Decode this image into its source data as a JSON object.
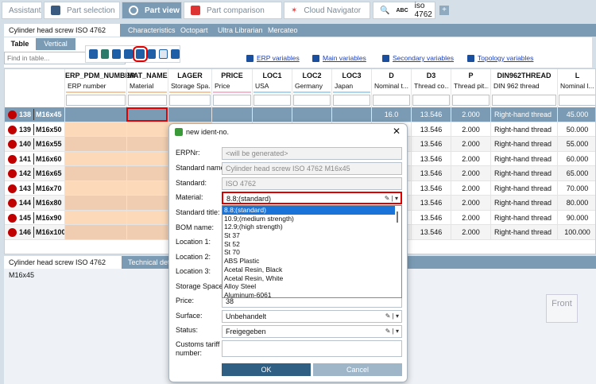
{
  "top_tabs": [
    {
      "label": "Assistant"
    },
    {
      "label": "Part selection"
    },
    {
      "label": "Part view"
    },
    {
      "label": "Part comparison"
    },
    {
      "label": "Cloud Navigator"
    },
    {
      "label": "iso 4762",
      "prefix": "ABC"
    }
  ],
  "sub_tabs": [
    "Cylinder head screw ISO 4762 M16x45",
    "Characteristics",
    "Octopart",
    "Ultra Librarian",
    "Mercateo"
  ],
  "view_tabs": [
    "Table",
    "Vertical"
  ],
  "search": {
    "placeholder": "Find in table..."
  },
  "checkboxes": [
    "ERP variables",
    "Main variables",
    "Secondary variables",
    "Topology variables"
  ],
  "columns": [
    {
      "name": "ERP_PDM_NUMBER",
      "desc": "ERP number",
      "color": "#f5c9a0"
    },
    {
      "name": "MAT_NAME",
      "desc": "Material",
      "color": "#f5c9a0"
    },
    {
      "name": "LAGER",
      "desc": "Storage Spa...",
      "color": "#f5c9a0"
    },
    {
      "name": "PRICE",
      "desc": "Price",
      "color": "#f7b9d0"
    },
    {
      "name": "LOC1",
      "desc": "USA",
      "color": "#a9d8f0"
    },
    {
      "name": "LOC2",
      "desc": "Germany",
      "color": "#a9d8f0"
    },
    {
      "name": "LOC3",
      "desc": "Japan",
      "color": "#a9d8f0"
    },
    {
      "name": "D",
      "desc": "Nominal t...",
      "color": ""
    },
    {
      "name": "D3",
      "desc": "Thread co...",
      "color": ""
    },
    {
      "name": "P",
      "desc": "Thread pit...",
      "color": ""
    },
    {
      "name": "DIN962THREAD",
      "desc": "DIN 962 thread",
      "color": ""
    },
    {
      "name": "L",
      "desc": "Nominal l...",
      "color": ""
    }
  ],
  "rows": [
    {
      "num": "138",
      "id": "M16x45",
      "D": "16.0",
      "D3": "13.546",
      "P": "2.000",
      "thread": "Right-hand thread",
      "L": "45.000"
    },
    {
      "num": "139",
      "id": "M16x50",
      "D3": "13.546",
      "P": "2.000",
      "thread": "Right-hand thread",
      "L": "50.000"
    },
    {
      "num": "140",
      "id": "M16x55",
      "D3": "13.546",
      "P": "2.000",
      "thread": "Right-hand thread",
      "L": "55.000"
    },
    {
      "num": "141",
      "id": "M16x60",
      "D3": "13.546",
      "P": "2.000",
      "thread": "Right-hand thread",
      "L": "60.000"
    },
    {
      "num": "142",
      "id": "M16x65",
      "D3": "13.546",
      "P": "2.000",
      "thread": "Right-hand thread",
      "L": "65.000"
    },
    {
      "num": "143",
      "id": "M16x70",
      "D3": "13.546",
      "P": "2.000",
      "thread": "Right-hand thread",
      "L": "70.000"
    },
    {
      "num": "144",
      "id": "M16x80",
      "D3": "13.546",
      "P": "2.000",
      "thread": "Right-hand thread",
      "L": "80.000"
    },
    {
      "num": "145",
      "id": "M16x90",
      "D3": "13.546",
      "P": "2.000",
      "thread": "Right-hand thread",
      "L": "90.000"
    },
    {
      "num": "146",
      "id": "M16x100",
      "D3": "13.546",
      "P": "2.000",
      "thread": "Right-hand thread",
      "L": "100.000"
    }
  ],
  "bottom_tabs": [
    "Cylinder head screw ISO 4762 M16x45",
    "Technical detai"
  ],
  "view_cube": "Front",
  "dialog": {
    "title": "new ident-no.",
    "fields": {
      "erpnr": {
        "label": "ERPNr:",
        "value": "<will be generated>"
      },
      "standard_name": {
        "label": "Standard name:",
        "value": "Cylinder head screw ISO 4762 M16x45"
      },
      "standard": {
        "label": "Standard:",
        "value": "ISO 4762"
      },
      "material": {
        "label": "Material:",
        "value": "8.8;(standard)"
      },
      "standard_title": {
        "label": "Standard title:"
      },
      "bom_name": {
        "label": "BOM name:"
      },
      "location1": {
        "label": "Location 1:"
      },
      "location2": {
        "label": "Location 2:"
      },
      "location3": {
        "label": "Location 3:"
      },
      "storage_space": {
        "label": "Storage Space:"
      },
      "price": {
        "label": "Price:",
        "value": "38"
      },
      "surface": {
        "label": "Surface:",
        "value": "Unbehandelt"
      },
      "status": {
        "label": "Status:",
        "value": "Freigegeben"
      },
      "customs": {
        "label": "Customs tariff number:",
        "value": ""
      }
    },
    "material_options": [
      "8.8;(standard)",
      "10.9;(medium strength)",
      "12.9;(high strength)",
      "St 37",
      "St 52",
      "St 70",
      "ABS Plastic",
      "Acetal Resin, Black",
      "Acetal Resin, White",
      "Alloy Steel",
      "Aluminum-6061"
    ],
    "ok": "OK",
    "cancel": "Cancel"
  },
  "colors": {
    "accent": "#7b9bb4",
    "highlight": "#e00000",
    "ok_button": "#2f5f82",
    "selected_option": "#1a73d9"
  }
}
